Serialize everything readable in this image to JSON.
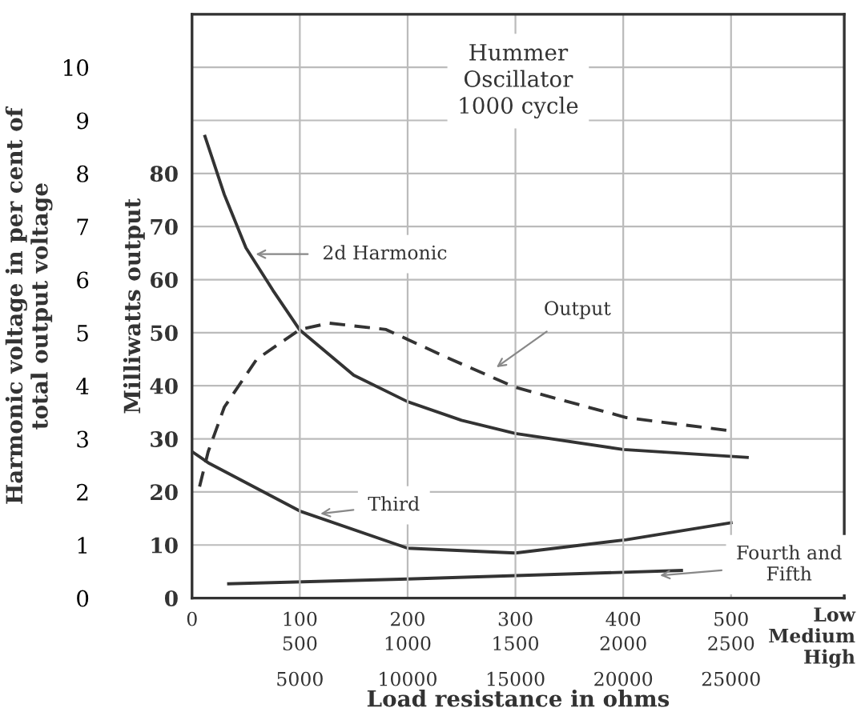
{
  "chart_data": {
    "type": "line",
    "title": "Hummer\nOscillator\n1000 cycle",
    "xlabel": "Load resistance in ohms",
    "ylabel": "Milliwatts output",
    "y2label": "Harmonic voltage in per cent of\ntotal output voltage",
    "xlim": [
      0,
      605
    ],
    "xticks": [
      0,
      100,
      200,
      300,
      400,
      500
    ],
    "x2lim": [
      0,
      3025
    ],
    "x2ticks": [
      500,
      1000,
      1500,
      2000,
      2500
    ],
    "ylim": [
      0,
      110
    ],
    "yticks": [
      0,
      10,
      20,
      30,
      40,
      50,
      60,
      70,
      80
    ],
    "y2lim": [
      0,
      11
    ],
    "y2ticks": [
      0,
      1,
      2,
      3,
      4,
      5,
      6,
      7,
      8,
      9,
      10
    ],
    "grid": true,
    "series": [
      {
        "color": "#333333",
        "axis": "y2",
        "line_style": "solid",
        "x": [
          12,
          30,
          50,
          75,
          100,
          150,
          200,
          250,
          300,
          400,
          515
        ],
        "values": [
          8.7,
          7.6,
          6.6,
          5.8,
          5.05,
          4.2,
          3.7,
          3.35,
          3.1,
          2.8,
          2.65
        ]
      },
      {
        "color": "#333333",
        "axis": "y",
        "line_style": "dashed",
        "x": [
          7,
          15,
          30,
          60,
          100,
          127,
          180,
          240,
          300,
          403,
          500
        ],
        "values": [
          21,
          27.6,
          36,
          45,
          50.6,
          51.8,
          50.6,
          45,
          39.7,
          34,
          31.5
        ]
      },
      {
        "color": "#333333",
        "axis": "y2",
        "line_style": "solid",
        "x": [
          0,
          15,
          100,
          200,
          300,
          403,
          500
        ],
        "values": [
          2.76,
          2.55,
          1.64,
          0.94,
          0.85,
          1.1,
          1.42
        ]
      },
      {
        "color": "#333333",
        "axis": "y2",
        "line_style": "solid",
        "x": [
          34,
          200,
          454
        ],
        "values": [
          0.27,
          0.36,
          0.52
        ]
      }
    ],
    "annotations": [
      {
        "text": "2d Harmonic",
        "x": 55,
        "y": 64.8
      },
      {
        "text": "Output",
        "x": 279,
        "y": 43
      },
      {
        "text": "Third",
        "x": 115,
        "y": 15.8
      },
      {
        "text": "Fourth and\nFifth",
        "x": 430,
        "y": 4.2
      },
      "5000",
      "10000",
      "15000",
      "20000",
      "25000",
      "Low\nMedium\nHigh"
    ]
  }
}
